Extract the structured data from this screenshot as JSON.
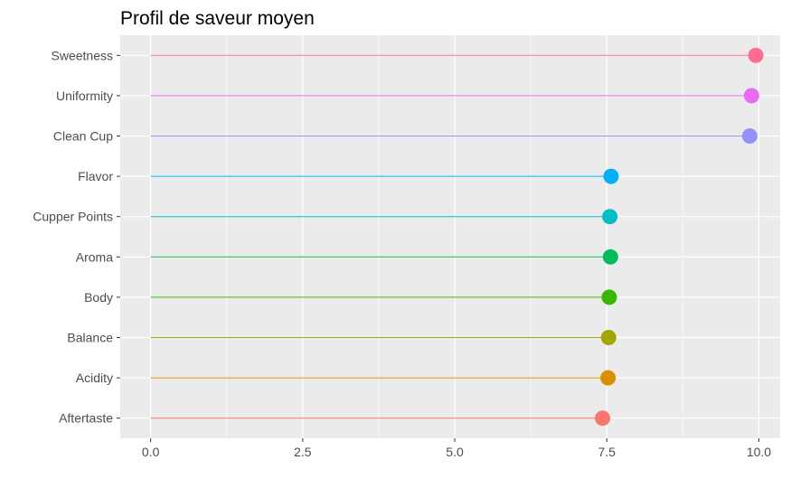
{
  "chart_data": {
    "type": "lollipop",
    "orientation": "horizontal",
    "title": "Profil de saveur moyen",
    "xlabel": "",
    "ylabel": "",
    "xlim": [
      -0.5,
      10.35
    ],
    "xticks": [
      0,
      2.5,
      5,
      7.5,
      10
    ],
    "xtick_labels": [
      "0.0",
      "2.5",
      "5.0",
      "7.5",
      "10.0"
    ],
    "grid": true,
    "legend": "none",
    "categories": [
      "Sweetness",
      "Uniformity",
      "Clean Cup",
      "Flavor",
      "Cupper Points",
      "Aroma",
      "Body",
      "Balance",
      "Acidity",
      "Aftertaste"
    ],
    "values": [
      9.95,
      9.88,
      9.85,
      7.57,
      7.55,
      7.56,
      7.54,
      7.53,
      7.52,
      7.43
    ],
    "colors": [
      "#FF6C91",
      "#E76BF3",
      "#9590FF",
      "#00B0F6",
      "#00BFC4",
      "#00BC59",
      "#39B600",
      "#A3A500",
      "#D89000",
      "#F8766D"
    ]
  }
}
